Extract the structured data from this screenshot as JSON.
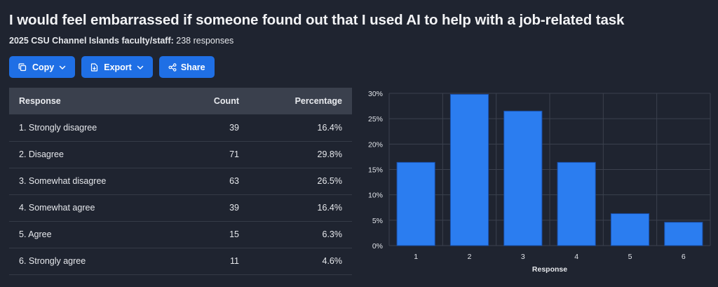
{
  "title": "I would feel embarrassed if someone found out that I used AI to help with a job-related task",
  "subtitle": {
    "group": "2025 CSU Channel Islands faculty/staff:",
    "responses": "238 responses"
  },
  "toolbar": {
    "copy_label": "Copy",
    "export_label": "Export",
    "share_label": "Share"
  },
  "table": {
    "headers": {
      "response": "Response",
      "count": "Count",
      "percentage": "Percentage"
    },
    "rows": [
      {
        "response": "1. Strongly disagree",
        "count": "39",
        "percentage": "16.4%"
      },
      {
        "response": "2. Disagree",
        "count": "71",
        "percentage": "29.8%"
      },
      {
        "response": "3. Somewhat disagree",
        "count": "63",
        "percentage": "26.5%"
      },
      {
        "response": "4. Somewhat agree",
        "count": "39",
        "percentage": "16.4%"
      },
      {
        "response": "5. Agree",
        "count": "15",
        "percentage": "6.3%"
      },
      {
        "response": "6. Strongly agree",
        "count": "11",
        "percentage": "4.6%"
      }
    ]
  },
  "colors": {
    "accent": "#1f6fe5",
    "bar": "#2b7df0",
    "background": "#1f2430",
    "table_header": "#3a404d"
  },
  "chart_data": {
    "type": "bar",
    "categories": [
      "1",
      "2",
      "3",
      "4",
      "5",
      "6"
    ],
    "values": [
      16.4,
      29.8,
      26.5,
      16.4,
      6.3,
      4.6
    ],
    "xlabel": "Response",
    "ylabel": "",
    "ylim": [
      0,
      30
    ],
    "yticks": [
      "0%",
      "5%",
      "10%",
      "15%",
      "20%",
      "25%",
      "30%"
    ],
    "grid": true
  }
}
